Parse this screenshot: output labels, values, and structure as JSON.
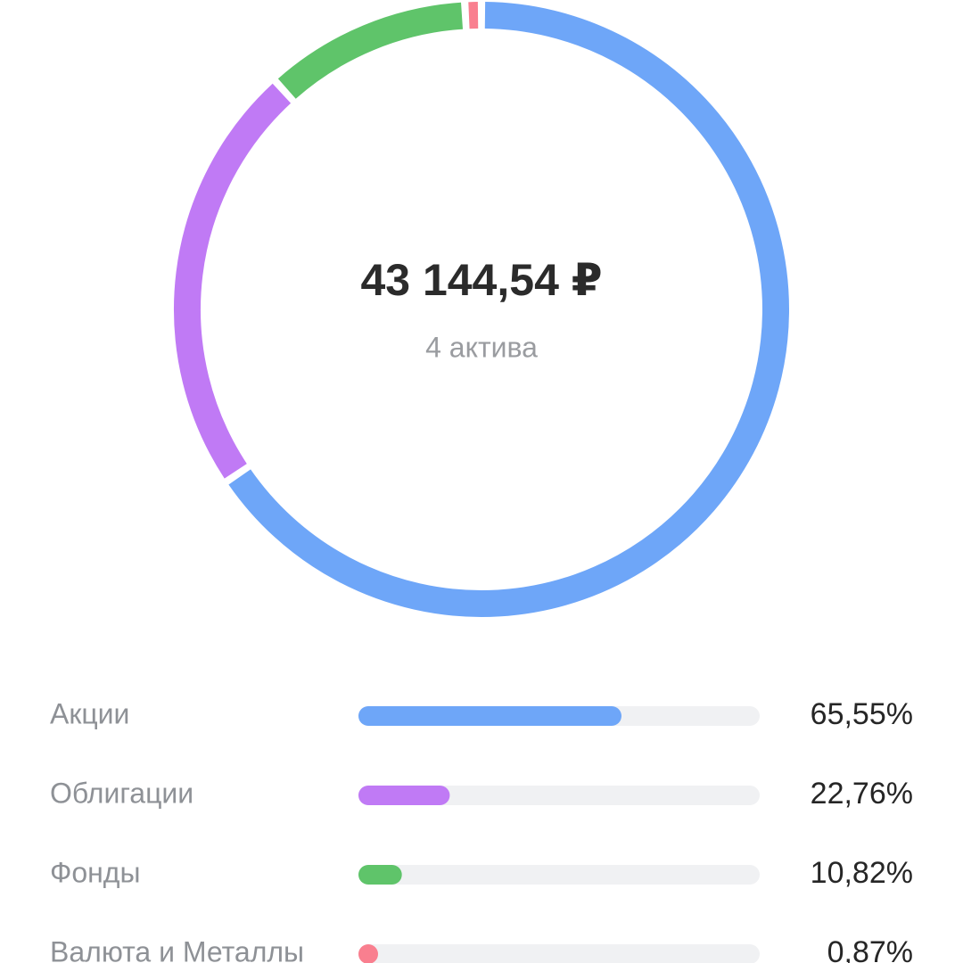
{
  "chart_data": {
    "type": "donut",
    "center_value": "43 144,54 ₽",
    "center_label": "4 актива",
    "categories": [
      "Акции",
      "Облигации",
      "Фонды",
      "Валюта и Металлы"
    ],
    "values": [
      65.55,
      22.76,
      10.82,
      0.87
    ],
    "value_labels": [
      "65,55%",
      "22,76%",
      "10,82%",
      "0,87%"
    ],
    "colors": [
      "#6ea6f8",
      "#c07af5",
      "#5fc46a",
      "#f97f8f"
    ]
  }
}
